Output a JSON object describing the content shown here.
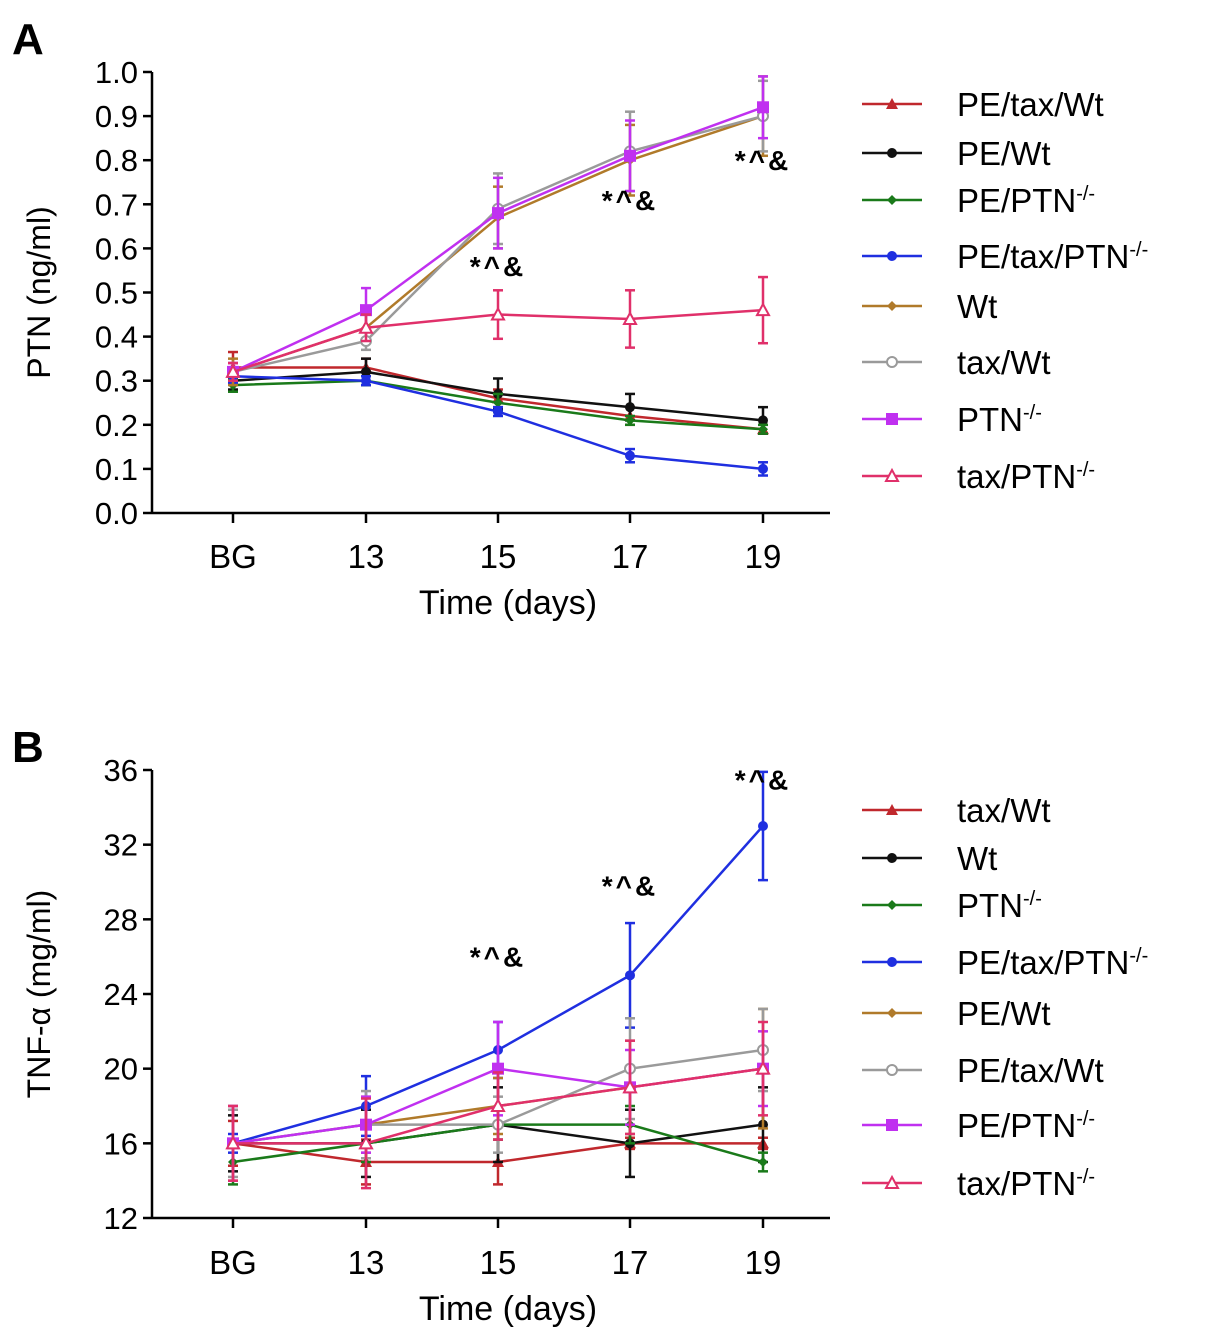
{
  "chart_data": [
    {
      "panel_label": "A",
      "type": "line",
      "xlabel": "Time (days)",
      "ylabel": "PTN (ng/ml)",
      "categories": [
        "BG",
        "13",
        "15",
        "17",
        "19"
      ],
      "ylim": [
        0,
        1.0
      ],
      "yticks": [
        "0.0",
        "0.1",
        "0.2",
        "0.3",
        "0.4",
        "0.5",
        "0.6",
        "0.7",
        "0.8",
        "0.9",
        "1.0"
      ],
      "legend_placement": "right",
      "grid": false,
      "series": [
        {
          "name": "PE/tax/Wt",
          "color": "#c0282d",
          "marker": "triangle",
          "values": [
            0.33,
            0.33,
            0.26,
            0.22,
            0.19
          ],
          "errors": [
            0.035,
            0.02,
            0.02,
            0.02,
            0.01
          ]
        },
        {
          "name": "PE/Wt",
          "color": "#111111",
          "marker": "circle",
          "values": [
            0.3,
            0.32,
            0.27,
            0.24,
            0.21
          ],
          "errors": [
            0.02,
            0.03,
            0.035,
            0.03,
            0.03
          ]
        },
        {
          "name": "PE/PTN-/-",
          "color": "#1a7a1a",
          "marker": "diamond",
          "values": [
            0.29,
            0.3,
            0.25,
            0.21,
            0.19
          ],
          "errors": [
            0.015,
            0.01,
            0.02,
            0.01,
            0.01
          ]
        },
        {
          "name": "PE/tax/PTN-/-",
          "color": "#1f2fe0",
          "marker": "circle",
          "values": [
            0.31,
            0.3,
            0.23,
            0.13,
            0.1
          ],
          "errors": [
            0.015,
            0.01,
            0.01,
            0.015,
            0.015
          ]
        },
        {
          "name": "Wt",
          "color": "#b07a2a",
          "marker": "diamond",
          "values": [
            0.32,
            0.42,
            0.67,
            0.8,
            0.9
          ],
          "errors": [
            0.03,
            0.03,
            0.07,
            0.08,
            0.09
          ]
        },
        {
          "name": "tax/Wt",
          "color": "#9a9a9a",
          "marker": "open-circle",
          "values": [
            0.32,
            0.39,
            0.69,
            0.82,
            0.9
          ],
          "errors": [
            0.02,
            0.02,
            0.08,
            0.09,
            0.08
          ]
        },
        {
          "name": "PTN-/-",
          "color": "#c030f0",
          "marker": "square",
          "values": [
            0.32,
            0.46,
            0.68,
            0.81,
            0.92
          ],
          "errors": [
            0.02,
            0.05,
            0.08,
            0.08,
            0.07
          ]
        },
        {
          "name": "tax/PTN-/-",
          "color": "#e0306a",
          "marker": "open-triangle",
          "values": [
            0.32,
            0.42,
            0.45,
            0.44,
            0.46
          ],
          "errors": [
            0.02,
            0.03,
            0.055,
            0.065,
            0.075
          ]
        }
      ],
      "annotations": [
        {
          "text": "*^&",
          "x": "15",
          "y": 0.56
        },
        {
          "text": "*^&",
          "x": "17",
          "y": 0.71
        },
        {
          "text": "*^&",
          "x": "19",
          "y": 0.8
        }
      ]
    },
    {
      "panel_label": "B",
      "type": "line",
      "xlabel": "Time (days)",
      "ylabel": "TNF-α (mg/ml)",
      "categories": [
        "BG",
        "13",
        "15",
        "17",
        "19"
      ],
      "ylim": [
        12,
        36
      ],
      "yticks": [
        "12",
        "16",
        "20",
        "24",
        "28",
        "32",
        "36"
      ],
      "legend_placement": "right",
      "grid": false,
      "series": [
        {
          "name": "tax/Wt",
          "color": "#c0282d",
          "marker": "triangle",
          "values": [
            16,
            15,
            15,
            16,
            16
          ],
          "errors": [
            1.2,
            1.2,
            1.2,
            0.3,
            0.3
          ]
        },
        {
          "name": "Wt",
          "color": "#111111",
          "marker": "circle",
          "values": [
            16,
            16,
            17,
            16,
            17
          ],
          "errors": [
            1.5,
            1.8,
            2.0,
            1.8,
            2.0
          ]
        },
        {
          "name": "PTN-/-",
          "color": "#1a7a1a",
          "marker": "diamond",
          "values": [
            15,
            16,
            17,
            17,
            15
          ],
          "errors": [
            1.2,
            1.0,
            0.8,
            1.0,
            0.5
          ]
        },
        {
          "name": "PE/tax/PTN-/-",
          "color": "#1f2fe0",
          "marker": "circle",
          "values": [
            16,
            18,
            21,
            25,
            33
          ],
          "errors": [
            0.5,
            1.6,
            1.5,
            2.8,
            2.9
          ]
        },
        {
          "name": "PE/Wt",
          "color": "#b07a2a",
          "marker": "diamond",
          "values": [
            16,
            17,
            18,
            19,
            20
          ],
          "errors": [
            2.0,
            1.5,
            1.5,
            2.5,
            3.2
          ]
        },
        {
          "name": "PE/tax/Wt",
          "color": "#9a9a9a",
          "marker": "open-circle",
          "values": [
            16,
            17,
            17,
            20,
            21
          ],
          "errors": [
            1.8,
            1.8,
            1.5,
            2.7,
            2.2
          ]
        },
        {
          "name": "PE/PTN-/-",
          "color": "#c030f0",
          "marker": "square",
          "values": [
            16,
            17,
            20,
            19,
            20
          ],
          "errors": [
            2.0,
            1.5,
            2.5,
            2.0,
            2.0
          ]
        },
        {
          "name": "tax/PTN-/-",
          "color": "#e0306a",
          "marker": "open-triangle",
          "values": [
            16,
            16,
            18,
            19,
            20
          ],
          "errors": [
            2.0,
            2.4,
            1.8,
            2.5,
            2.5
          ]
        }
      ],
      "annotations": [
        {
          "text": "*^&",
          "x": "15",
          "y": 26.0
        },
        {
          "text": "*^&",
          "x": "17",
          "y": 29.8
        },
        {
          "text": "*^&",
          "x": "19",
          "y": 35.5
        }
      ]
    }
  ]
}
